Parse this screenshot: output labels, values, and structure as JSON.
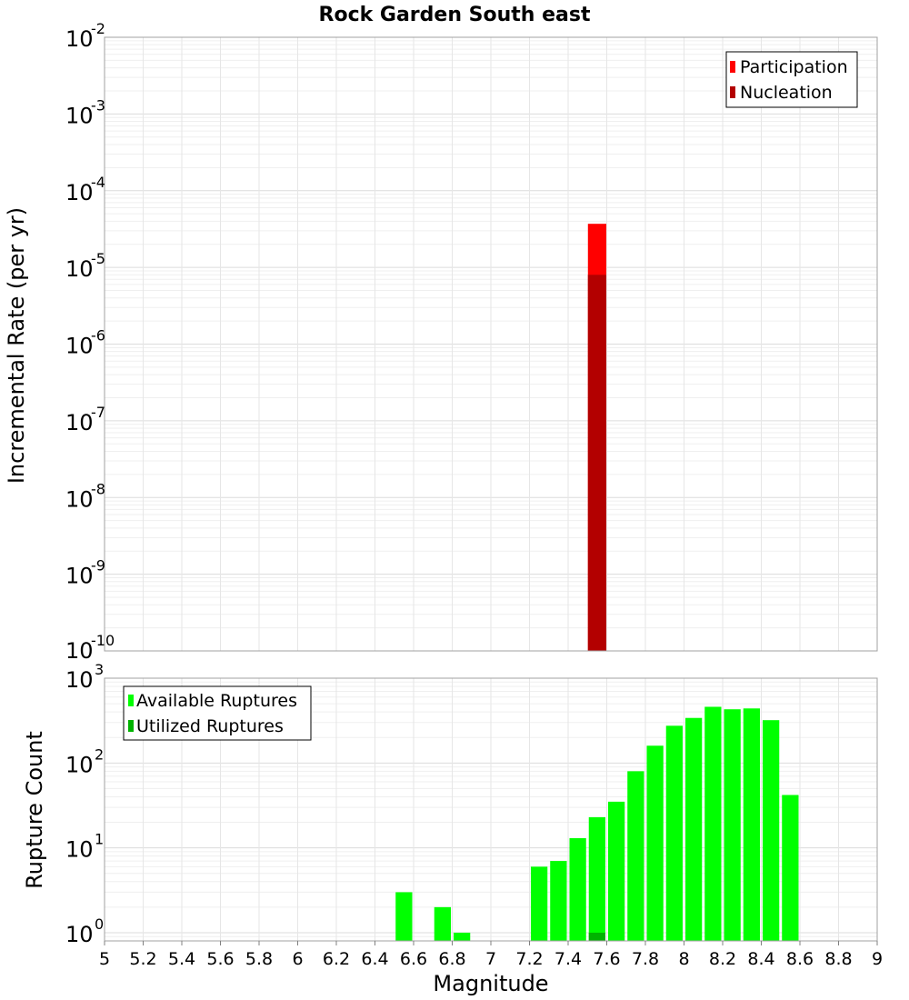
{
  "chart_data": [
    {
      "type": "bar",
      "title": "Rock Garden South east",
      "xlabel": "Magnitude",
      "ylabel": "Incremental Rate (per yr)",
      "yscale": "log",
      "ylim": [
        1e-10,
        0.01
      ],
      "xlim": [
        5,
        9
      ],
      "grid": true,
      "legend_position": "top-right",
      "y_ticks": [
        {
          "base": "10",
          "exp": "-2"
        },
        {
          "base": "10",
          "exp": "-3"
        },
        {
          "base": "10",
          "exp": "-4"
        },
        {
          "base": "10",
          "exp": "-5"
        },
        {
          "base": "10",
          "exp": "-6"
        },
        {
          "base": "10",
          "exp": "-7"
        },
        {
          "base": "10",
          "exp": "-8"
        },
        {
          "base": "10",
          "exp": "-9"
        },
        {
          "base": "10",
          "exp": "-10"
        }
      ],
      "series": [
        {
          "name": "Participation",
          "color": "#ff0000",
          "bins": [
            {
              "x": 7.55,
              "value": 3.7e-05
            }
          ]
        },
        {
          "name": "Nucleation",
          "color": "#b30000",
          "bins": [
            {
              "x": 7.55,
              "value": 8e-06
            }
          ]
        }
      ]
    },
    {
      "type": "bar",
      "xlabel": "Magnitude",
      "ylabel": "Rupture Count",
      "yscale": "log",
      "ylim": [
        0.8,
        1000
      ],
      "xlim": [
        5,
        9
      ],
      "grid": true,
      "legend_position": "top-left",
      "x_ticks": [
        "5",
        "5.2",
        "5.4",
        "5.6",
        "5.8",
        "6",
        "6.2",
        "6.4",
        "6.6",
        "6.8",
        "7",
        "7.2",
        "7.4",
        "7.6",
        "7.8",
        "8",
        "8.2",
        "8.4",
        "8.6",
        "8.8",
        "9"
      ],
      "y_ticks": [
        {
          "base": "10",
          "exp": "3",
          "value": 1000
        },
        {
          "base": "10",
          "exp": "2",
          "value": 100
        },
        {
          "base": "10",
          "exp": "1",
          "value": 10
        },
        {
          "base": "10",
          "exp": "0",
          "value": 1
        }
      ],
      "series": [
        {
          "name": "Available Ruptures",
          "color": "#00ff00",
          "bins": [
            {
              "x": 6.55,
              "value": 3
            },
            {
              "x": 6.75,
              "value": 2
            },
            {
              "x": 6.85,
              "value": 1
            },
            {
              "x": 7.25,
              "value": 6
            },
            {
              "x": 7.35,
              "value": 7
            },
            {
              "x": 7.45,
              "value": 13
            },
            {
              "x": 7.55,
              "value": 23
            },
            {
              "x": 7.65,
              "value": 35
            },
            {
              "x": 7.75,
              "value": 80
            },
            {
              "x": 7.85,
              "value": 160
            },
            {
              "x": 7.95,
              "value": 275
            },
            {
              "x": 8.05,
              "value": 340
            },
            {
              "x": 8.15,
              "value": 460
            },
            {
              "x": 8.25,
              "value": 430
            },
            {
              "x": 8.35,
              "value": 440
            },
            {
              "x": 8.45,
              "value": 320
            },
            {
              "x": 8.55,
              "value": 42
            }
          ]
        },
        {
          "name": "Utilized Ruptures",
          "color": "#00b300",
          "bins": [
            {
              "x": 7.55,
              "value": 1
            }
          ]
        }
      ]
    }
  ]
}
